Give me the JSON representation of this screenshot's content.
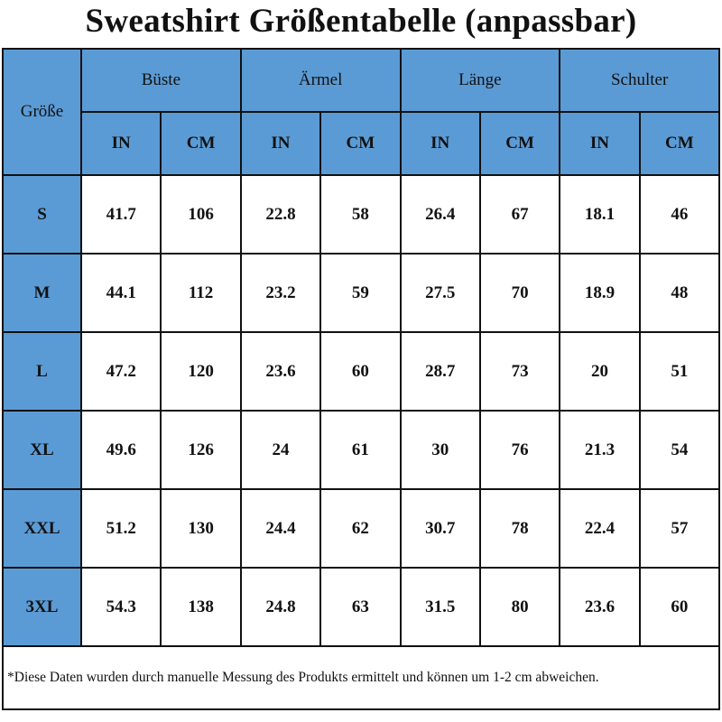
{
  "title": "Sweatshirt Größentabelle (anpassbar)",
  "header_color": "#5b9bd5",
  "table": {
    "size_label": "Größe",
    "groups": [
      "Büste",
      "Ärmel",
      "Länge",
      "Schulter"
    ],
    "units": [
      "IN",
      "CM",
      "IN",
      "CM",
      "IN",
      "CM",
      "IN",
      "CM"
    ],
    "rows": [
      {
        "size": "S",
        "values": [
          "41.7",
          "106",
          "22.8",
          "58",
          "26.4",
          "67",
          "18.1",
          "46"
        ]
      },
      {
        "size": "M",
        "values": [
          "44.1",
          "112",
          "23.2",
          "59",
          "27.5",
          "70",
          "18.9",
          "48"
        ]
      },
      {
        "size": "L",
        "values": [
          "47.2",
          "120",
          "23.6",
          "60",
          "28.7",
          "73",
          "20",
          "51"
        ]
      },
      {
        "size": "XL",
        "values": [
          "49.6",
          "126",
          "24",
          "61",
          "30",
          "76",
          "21.3",
          "54"
        ]
      },
      {
        "size": "XXL",
        "values": [
          "51.2",
          "130",
          "24.4",
          "62",
          "30.7",
          "78",
          "22.4",
          "57"
        ]
      },
      {
        "size": "3XL",
        "values": [
          "54.3",
          "138",
          "24.8",
          "63",
          "31.5",
          "80",
          "23.6",
          "60"
        ]
      }
    ]
  },
  "footnote": "*Diese Daten wurden durch manuelle Messung des Produkts ermittelt und können um 1-2 cm abweichen."
}
